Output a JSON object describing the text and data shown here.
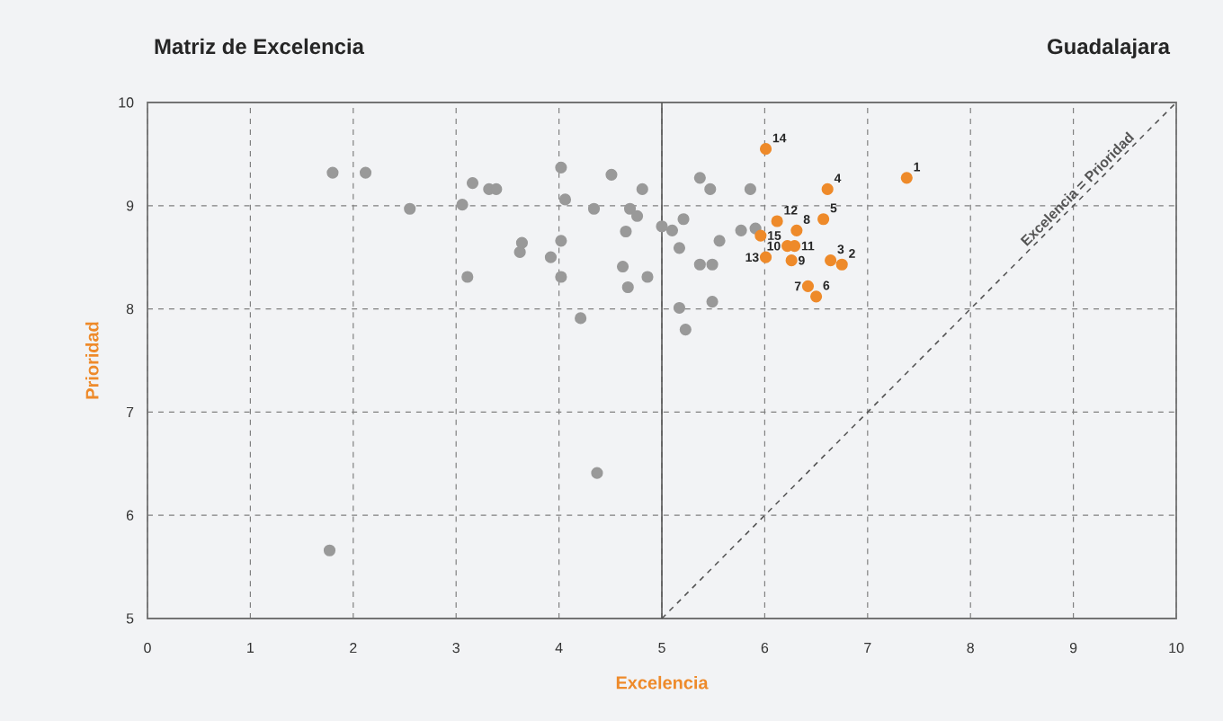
{
  "chart_data": {
    "type": "scatter",
    "title": "Matriz de Excelencia",
    "subtitle": "Guadalajara",
    "xlabel": "Excelencia",
    "ylabel": "Prioridad",
    "xlim": [
      0,
      10
    ],
    "ylim": [
      5,
      10
    ],
    "xticks": [
      0,
      1,
      2,
      3,
      4,
      5,
      6,
      7,
      8,
      9,
      10
    ],
    "yticks": [
      5,
      6,
      7,
      8,
      9,
      10
    ],
    "grid": true,
    "marker": "circle",
    "ref_lines": [
      {
        "axis": "x",
        "value": 5,
        "color": "#555555",
        "line_style": "solid"
      }
    ],
    "series": [
      {
        "color": "#999999",
        "x": [
          1.8,
          2.12,
          2.55,
          3.11,
          3.16,
          3.06,
          3.32,
          3.39,
          3.64,
          3.62,
          3.92,
          4.02,
          4.06,
          4.02,
          4.02,
          4.21,
          4.34,
          4.51,
          4.81,
          4.69,
          4.76,
          4.65,
          4.62,
          4.67,
          4.86,
          5.0,
          5.1,
          5.21,
          5.17,
          5.37,
          5.47,
          5.86,
          5.56,
          5.37,
          5.49,
          5.49,
          5.17,
          5.23,
          5.77,
          5.91,
          4.37,
          1.77
        ],
        "values": [
          9.32,
          9.32,
          8.97,
          8.31,
          9.22,
          9.01,
          9.16,
          9.16,
          8.64,
          8.55,
          8.5,
          9.37,
          9.06,
          8.66,
          8.31,
          7.91,
          8.97,
          9.3,
          9.16,
          8.97,
          8.9,
          8.75,
          8.41,
          8.21,
          8.31,
          8.8,
          8.76,
          8.87,
          8.59,
          9.27,
          9.16,
          9.16,
          8.66,
          8.43,
          8.43,
          8.07,
          8.01,
          7.8,
          8.76,
          8.78,
          6.41,
          5.66
        ]
      },
      {
        "color": "#ee8a2a",
        "x": [
          7.38,
          6.75,
          6.64,
          6.61,
          6.57,
          6.5,
          6.42,
          6.31,
          6.26,
          6.22,
          6.29,
          6.12,
          6.01,
          6.01,
          5.96
        ],
        "values": [
          9.27,
          8.43,
          8.47,
          9.16,
          8.87,
          8.12,
          8.22,
          8.76,
          8.47,
          8.61,
          8.61,
          8.85,
          8.5,
          9.55,
          8.71
        ]
      },
      {
        "type": "line",
        "name": "Excelencia = Prioridad",
        "color": "#555555",
        "line_style": "dashed",
        "marker": "none",
        "x": [
          5,
          10
        ],
        "values": [
          5,
          10
        ]
      }
    ],
    "annotations": [
      {
        "text": "1",
        "x": 7.38,
        "y": 9.27
      },
      {
        "text": "2",
        "x": 6.75,
        "y": 8.43
      },
      {
        "text": "3",
        "x": 6.64,
        "y": 8.47
      },
      {
        "text": "4",
        "x": 6.61,
        "y": 9.16
      },
      {
        "text": "5",
        "x": 6.57,
        "y": 8.87
      },
      {
        "text": "6",
        "x": 6.5,
        "y": 8.12
      },
      {
        "text": "7",
        "x": 6.42,
        "y": 8.22
      },
      {
        "text": "8",
        "x": 6.31,
        "y": 8.76
      },
      {
        "text": "9",
        "x": 6.26,
        "y": 8.47
      },
      {
        "text": "10",
        "x": 6.22,
        "y": 8.61
      },
      {
        "text": "11",
        "x": 6.29,
        "y": 8.61
      },
      {
        "text": "12",
        "x": 6.12,
        "y": 8.85
      },
      {
        "text": "13",
        "x": 6.01,
        "y": 8.5
      },
      {
        "text": "14",
        "x": 6.01,
        "y": 9.55
      },
      {
        "text": "15",
        "x": 5.96,
        "y": 8.71
      }
    ]
  }
}
